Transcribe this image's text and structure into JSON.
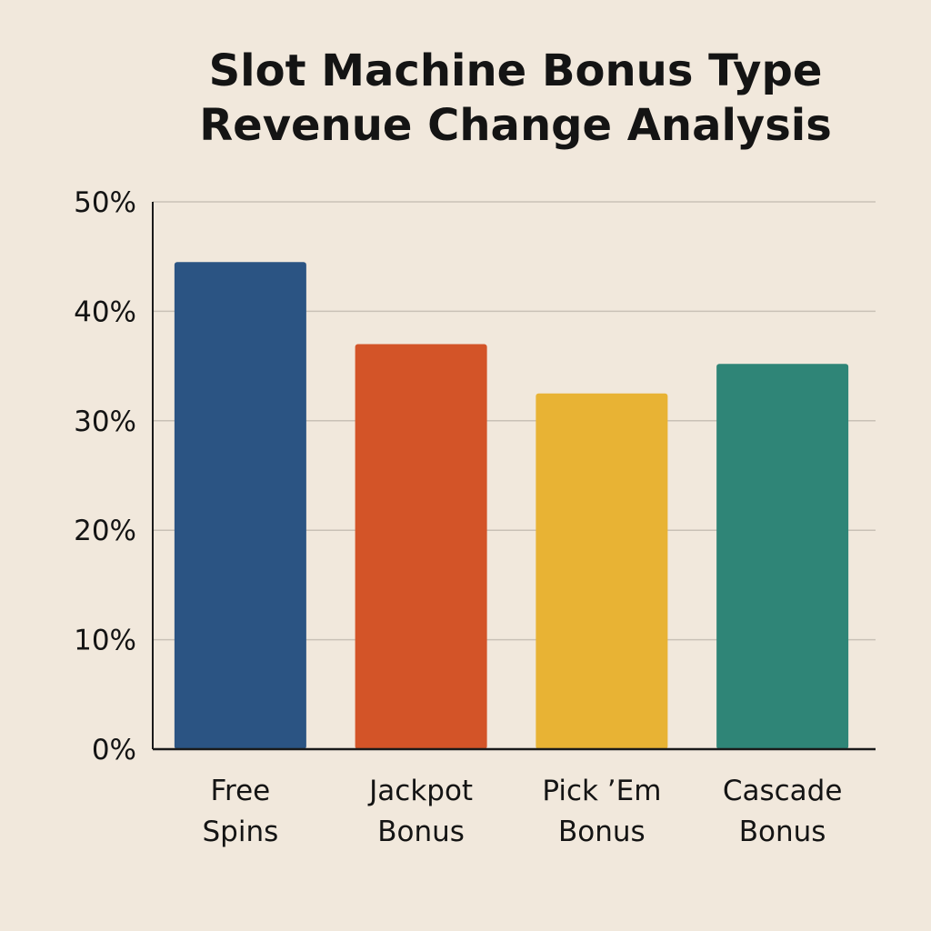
{
  "chart_data": {
    "type": "bar",
    "title_lines": [
      "Slot Machine Bonus Type",
      "Revenue Change Analysis"
    ],
    "categories": [
      [
        "Free",
        "Spins"
      ],
      [
        "Jackpot",
        "Bonus"
      ],
      [
        "Pick ’Em",
        "Bonus"
      ],
      [
        "Cascade",
        "Bonus"
      ]
    ],
    "values": [
      44.5,
      37,
      32.5,
      35.2
    ],
    "colors": [
      "#2b5483",
      "#d35428",
      "#e8b334",
      "#2f8577"
    ],
    "ylim": [
      0,
      50
    ],
    "yticks": [
      {
        "value": 0,
        "label": "0%"
      },
      {
        "value": 10,
        "label": "10%"
      },
      {
        "value": 20,
        "label": "20%"
      },
      {
        "value": 30,
        "label": "30%"
      },
      {
        "value": 40,
        "label": "40%"
      },
      {
        "value": 50,
        "label": "50%"
      }
    ],
    "grid": true,
    "legend": "none"
  }
}
